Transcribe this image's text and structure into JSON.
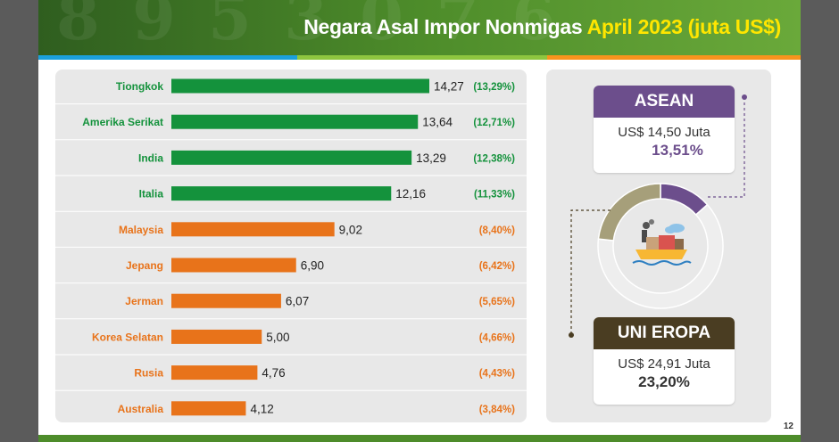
{
  "header": {
    "title_main": "Negara Asal Impor Nonmigas ",
    "title_highlight": "April 2023 (juta US$)"
  },
  "colors": {
    "top_bar": "#14923c",
    "other_bar": "#e8731a",
    "asean": "#6c4e8c",
    "uni_eropa": "#4a3d22",
    "donut_rest": "#eeeeee",
    "donut_ue": "#a69f7a"
  },
  "chart_data": {
    "type": "bar",
    "orientation": "horizontal",
    "categories": [
      "Tiongkok",
      "Amerika Serikat",
      "India",
      "Italia",
      "Malaysia",
      "Jepang",
      "Jerman",
      "Korea Selatan",
      "Rusia",
      "Australia"
    ],
    "values": [
      14.27,
      13.64,
      13.29,
      12.16,
      9.02,
      6.9,
      6.07,
      5.0,
      4.76,
      4.12
    ],
    "value_labels": [
      "14,27",
      "13,64",
      "13,29",
      "12,16",
      "9,02",
      "6,90",
      "6,07",
      "5,00",
      "4,76",
      "4,12"
    ],
    "share_labels": [
      "(13,29%)",
      "(12,71%)",
      "(12,38%)",
      "(11,33%)",
      "(8,40%)",
      "(6,42%)",
      "(5,65%)",
      "(4,66%)",
      "(4,43%)",
      "(3,84%)"
    ],
    "highlight_count": 4,
    "title": "",
    "xlabel": "",
    "ylabel": "",
    "xlim": [
      0,
      14.27
    ],
    "grid": false
  },
  "regions": {
    "asean": {
      "name": "ASEAN",
      "value": "US$ 14,50 Juta",
      "share": "13,51%"
    },
    "uni_eropa": {
      "name": "UNI EROPA",
      "value": "US$ 24,91 Juta",
      "share": "23,20%"
    }
  },
  "donut": {
    "asean_pct": 13.51,
    "ue_pct": 23.2,
    "icon": "cargo-ship-factory-icon"
  },
  "page_number": "12"
}
